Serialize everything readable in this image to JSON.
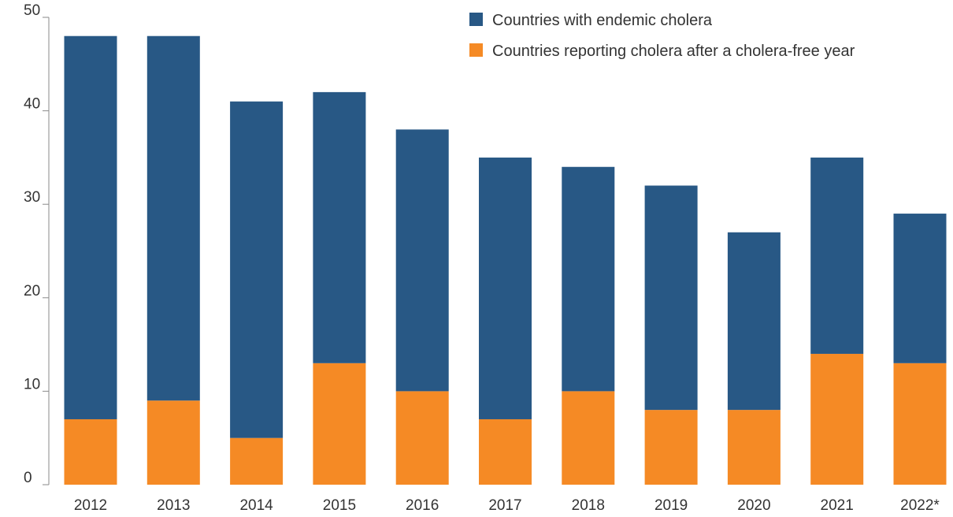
{
  "chart_data": {
    "type": "bar",
    "stacked": true,
    "categories": [
      "2012",
      "2013",
      "2014",
      "2015",
      "2016",
      "2017",
      "2018",
      "2019",
      "2020",
      "2021",
      "2022*"
    ],
    "series": [
      {
        "name": "Countries reporting cholera after a cholera-free year",
        "color": "#F58A25",
        "values": [
          7,
          9,
          5,
          13,
          10,
          7,
          10,
          8,
          8,
          14,
          13
        ]
      },
      {
        "name": "Countries with endemic cholera",
        "color": "#285885",
        "values": [
          41,
          39,
          36,
          29,
          28,
          28,
          24,
          24,
          19,
          21,
          16
        ]
      }
    ],
    "ylim": [
      0,
      50
    ],
    "yticks": [
      "0",
      "10",
      "20",
      "30",
      "40",
      "50"
    ],
    "legend": {
      "placement": "top-right",
      "entries": [
        "Countries with endemic cholera",
        "Countries reporting cholera after a cholera-free year"
      ]
    },
    "grid": false,
    "title": "",
    "xlabel": "",
    "ylabel": ""
  }
}
